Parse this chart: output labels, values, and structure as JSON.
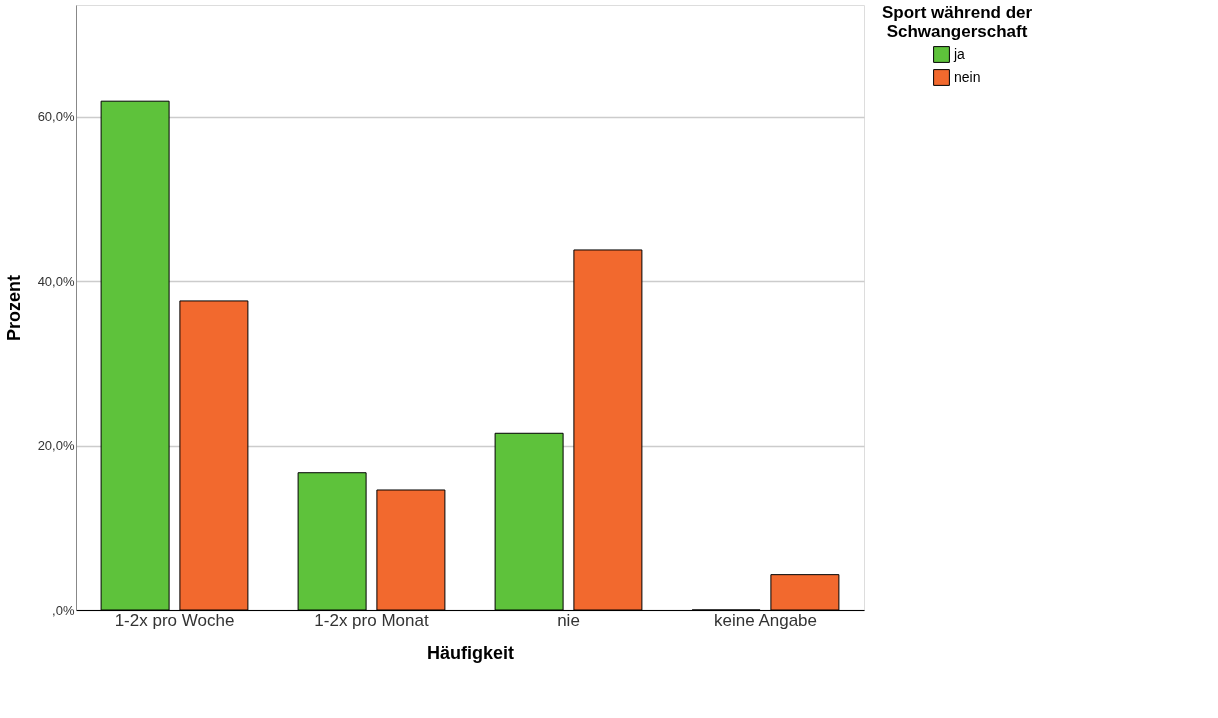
{
  "chart_data": {
    "type": "bar",
    "xlabel": "Häufigkeit",
    "ylabel": "Prozent",
    "legend_title": "Sport während der Schwangerschaft",
    "categories": [
      "1-2x pro Woche",
      "1-2x pro Monat",
      "nie",
      "keine Angabe"
    ],
    "series": [
      {
        "name": "ja",
        "color": "#5ec23b",
        "values": [
          61.9,
          16.7,
          21.5,
          0
        ]
      },
      {
        "name": "nein",
        "color": "#f2692e",
        "values": [
          37.6,
          14.6,
          43.8,
          4.3
        ]
      }
    ],
    "ylim": [
      0,
      73.6
    ],
    "yticks": [
      {
        "value": 0,
        "label": ",0%"
      },
      {
        "value": 20,
        "label": "20,0%"
      },
      {
        "value": 40,
        "label": "40,0%"
      },
      {
        "value": 60,
        "label": "60,0%"
      }
    ],
    "grid": "y",
    "legend": "top right"
  }
}
